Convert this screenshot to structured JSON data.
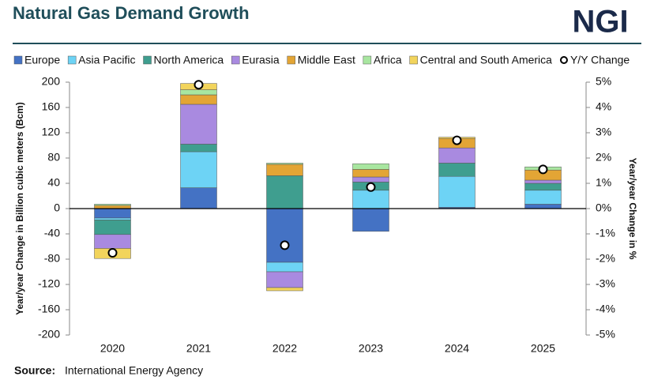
{
  "header": {
    "title": "Natural Gas Demand Growth",
    "logo": "NGI"
  },
  "chart_data": {
    "type": "bar",
    "stacked": true,
    "y_label": "Year/year Change in Billion cubic meters (Bcm)",
    "y2_label": "Year/year Change in %",
    "categories": [
      "2020",
      "2021",
      "2022",
      "2023",
      "2024",
      "2025"
    ],
    "series": [
      {
        "name": "Europe",
        "color": "#4472c4",
        "values": [
          -15,
          33,
          -85,
          -36,
          2,
          7
        ]
      },
      {
        "name": "Asia Pacific",
        "color": "#6dd3f5",
        "values": [
          -3,
          57,
          -15,
          29,
          49,
          22
        ]
      },
      {
        "name": "North America",
        "color": "#3f9e8f",
        "values": [
          -23,
          12,
          52,
          13,
          21,
          11
        ]
      },
      {
        "name": "Eurasia",
        "color": "#a98ae0",
        "values": [
          -22,
          63,
          -25,
          8,
          24,
          5
        ]
      },
      {
        "name": "Middle East",
        "color": "#e3a535",
        "values": [
          5,
          15,
          18,
          12,
          15,
          16
        ]
      },
      {
        "name": "Africa",
        "color": "#a8e6a0",
        "values": [
          2,
          8,
          2,
          9,
          0,
          5
        ]
      },
      {
        "name": "Central and South America",
        "color": "#f2d45c",
        "values": [
          -16,
          10,
          -5,
          0,
          2,
          0
        ]
      },
      {
        "name": "Y/Y Change",
        "color": "#ffffff",
        "axis": "y2",
        "values": [
          -1.75,
          4.9,
          -1.45,
          0.85,
          2.7,
          1.55
        ]
      }
    ],
    "ylim": [
      -200,
      200
    ],
    "yticks": [
      -200,
      -160,
      -120,
      -80,
      -40,
      0,
      40,
      80,
      120,
      160,
      200
    ],
    "y2lim": [
      -5,
      5
    ],
    "y2ticks": [
      {
        "value": -5,
        "label": "-5%"
      },
      {
        "value": -4,
        "label": "-4%"
      },
      {
        "value": -3,
        "label": "-3%"
      },
      {
        "value": -2,
        "label": "-2%"
      },
      {
        "value": -1,
        "label": "-1%"
      },
      {
        "value": 0,
        "label": "0%"
      },
      {
        "value": 1,
        "label": "1%"
      },
      {
        "value": 2,
        "label": "2%"
      },
      {
        "value": 3,
        "label": "3%"
      },
      {
        "value": 4,
        "label": "4%"
      },
      {
        "value": 5,
        "label": "5%"
      }
    ],
    "negative_tick_color": "#e00000",
    "grid": false,
    "legend": "top"
  },
  "footer": {
    "source_label": "Source:",
    "source_text": "International Energy Agency"
  }
}
